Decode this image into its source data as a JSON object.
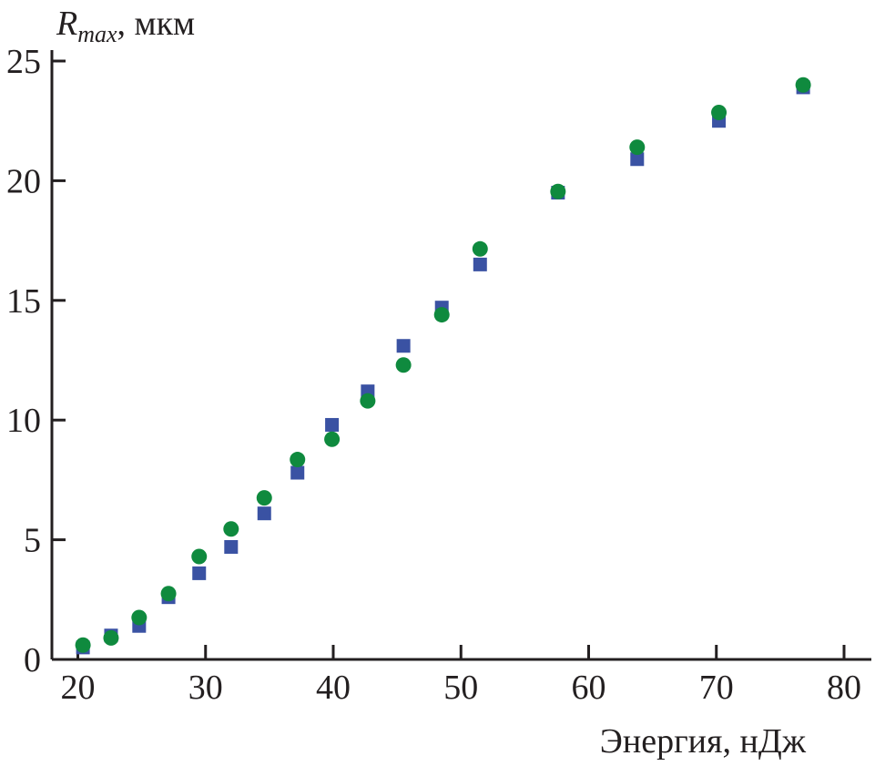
{
  "chart_data": {
    "type": "scatter",
    "title": "",
    "xlabel": "Энергия, нДж",
    "ylabel_main": "R",
    "ylabel_sub": "max",
    "ylabel_unit": ", мкм",
    "xlim": [
      20,
      80
    ],
    "ylim": [
      0,
      25
    ],
    "xticks": [
      20,
      30,
      40,
      50,
      60,
      70,
      80
    ],
    "yticks": [
      0,
      5,
      10,
      15,
      20,
      25
    ],
    "grid": false,
    "series": [
      {
        "name": "squares",
        "marker": "square",
        "color": "#3a52a3",
        "x": [
          20.4,
          22.6,
          24.8,
          27.1,
          29.5,
          32.0,
          34.6,
          37.2,
          39.9,
          42.7,
          45.5,
          48.5,
          51.5,
          57.6,
          63.8,
          70.2,
          76.8
        ],
        "y": [
          0.5,
          1.0,
          1.4,
          2.6,
          3.6,
          4.7,
          6.1,
          7.8,
          9.8,
          11.2,
          13.1,
          14.7,
          16.5,
          19.5,
          20.9,
          22.5,
          23.9
        ]
      },
      {
        "name": "circles",
        "marker": "circle",
        "color": "#0f8a3e",
        "x": [
          20.4,
          22.6,
          24.8,
          27.1,
          29.5,
          32.0,
          34.6,
          37.2,
          39.9,
          42.7,
          45.5,
          48.5,
          51.5,
          57.6,
          63.8,
          70.2,
          76.8
        ],
        "y": [
          0.6,
          0.9,
          1.75,
          2.75,
          4.3,
          5.45,
          6.75,
          8.35,
          9.2,
          10.8,
          12.3,
          14.4,
          17.15,
          19.55,
          21.4,
          22.85,
          24.0
        ]
      }
    ]
  }
}
